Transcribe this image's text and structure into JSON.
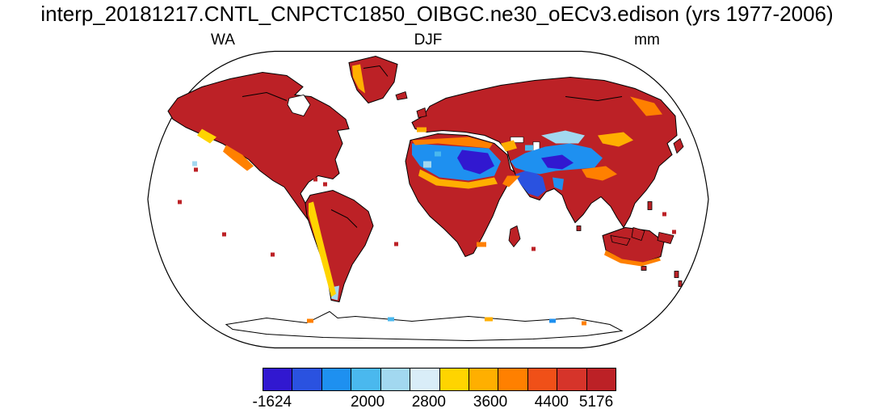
{
  "header": {
    "title": "interp_20181217.CNTL_CNPCTC1850_OIBGC.ne30_oECv3.edison (yrs 1977-2006)",
    "left_label": "WA",
    "center_label": "DJF",
    "right_label": "mm"
  },
  "chart_data": {
    "type": "heatmap",
    "subtype": "global-map-filled-contour",
    "title": "interp_20181217.CNTL_CNPCTC1850_OIBGC.ne30_oECv3.edison (yrs 1977-2006)",
    "variable": "WA",
    "season": "DJF",
    "units": "mm",
    "projection": "Robinson",
    "value_min": -1624,
    "value_max": 5176,
    "legend_position": "bottom",
    "colorbar": {
      "colors": [
        "#3118d0",
        "#2a52e0",
        "#1e90f0",
        "#4ab8ee",
        "#a2d8f0",
        "#d9edf8",
        "#ffd400",
        "#ffaf00",
        "#ff8000",
        "#f05018",
        "#d6342a",
        "#bc2126"
      ],
      "tick_labels": [
        "-1624",
        "2000",
        "2800",
        "3600",
        "4400",
        "5176"
      ],
      "tick_positions": [
        0.027,
        0.297,
        0.47,
        0.644,
        0.817,
        0.943
      ]
    },
    "map_notes": "Land mostly at colour-scale maximum (dark red). Arid belt from the Sahara across Arabia, Iran and Central Asia shows low values (blues), ringed by yellow/orange transition zones (Sahel, Anatolia, Rockies, Andes, Tibet, southern Australia). Oceans masked white; Antarctica outlined with sparse coastal coloured cells.",
    "map_ink": {
      "coastline": "#000000",
      "ocean": "#ffffff"
    }
  }
}
